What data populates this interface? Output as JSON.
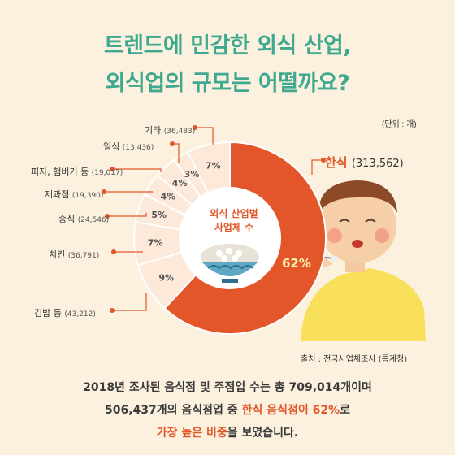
{
  "title": {
    "line1": "트렌드에 민감한 외식 산업,",
    "line2": "외식업의 규모는 어떨까요?"
  },
  "unit_note": "(단위 : 개)",
  "source": "출처 : 전국사업체조사 (통계청)",
  "center_title": [
    "외식 산업별",
    "사업체 수"
  ],
  "chart_data": {
    "type": "pie",
    "title": "외식 산업별 사업체 수",
    "slices": [
      {
        "label": "한식",
        "count": "(313,562)",
        "value": 313562,
        "percent": "62%",
        "color": "#E3562A"
      },
      {
        "label": "김밥 등",
        "count": "(43,212)",
        "value": 43212,
        "percent": "9%",
        "color": "#FCE9DA"
      },
      {
        "label": "치킨",
        "count": "(36,791)",
        "value": 36791,
        "percent": "7%",
        "color": "#FCE9DA"
      },
      {
        "label": "중식",
        "count": "(24,546)",
        "value": 24546,
        "percent": "5%",
        "color": "#FCE9DA"
      },
      {
        "label": "제과점",
        "count": "(19,390)",
        "value": 19390,
        "percent": "4%",
        "color": "#FCE9DA"
      },
      {
        "label": "피자, 햄버거 등",
        "count": "(19,017)",
        "value": 19017,
        "percent": "4%",
        "color": "#FCE9DA"
      },
      {
        "label": "일식",
        "count": "(13,436)",
        "value": 13436,
        "percent": "3%",
        "color": "#FCE9DA"
      },
      {
        "label": "기타",
        "count": "(36,483)",
        "value": 36483,
        "percent": "7%",
        "color": "#FCE9DA"
      }
    ]
  },
  "description": {
    "line1": "2018년 조사된 음식점 및 주점업 수는 총 709,014개이며",
    "line2_a": "506,437개의 음식점업 중 ",
    "line2_hl": "한식 음식점이 62%",
    "line2_b": "로",
    "line3_a": "가장 높은 비중",
    "line3_b": "을 보였습니다."
  },
  "colors": {
    "accent": "#E3562A",
    "title": "#3FA98F",
    "slice_light": "#FCE9DA",
    "background": "#FBF1DE"
  }
}
